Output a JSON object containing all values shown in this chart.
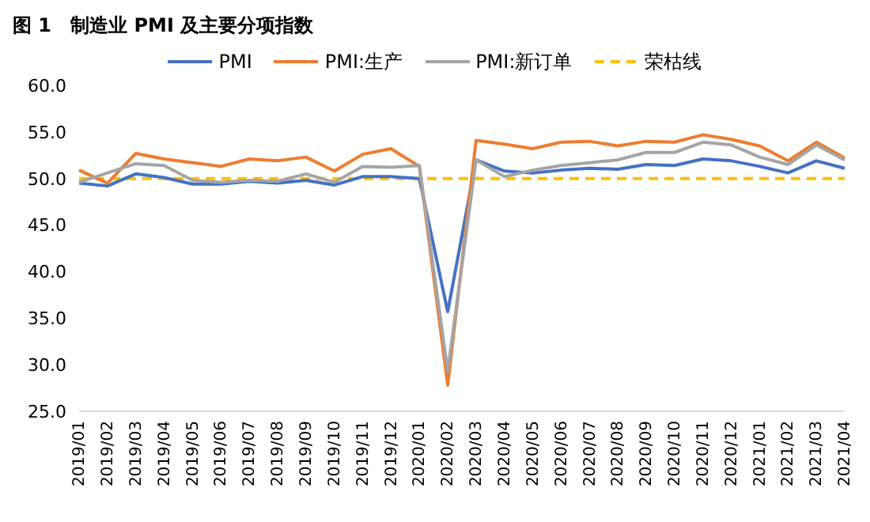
{
  "chart_data": {
    "type": "line",
    "title": "图 1　制造业 PMI 及主要分项指数",
    "categories": [
      "2019/01",
      "2019/02",
      "2019/03",
      "2019/04",
      "2019/05",
      "2019/06",
      "2019/07",
      "2019/08",
      "2019/09",
      "2019/10",
      "2019/11",
      "2019/12",
      "2020/01",
      "2020/02",
      "2020/03",
      "2020/04",
      "2020/05",
      "2020/06",
      "2020/07",
      "2020/08",
      "2020/09",
      "2020/10",
      "2020/11",
      "2020/12",
      "2021/01",
      "2021/02",
      "2021/03",
      "2021/04"
    ],
    "series": [
      {
        "name": "PMI",
        "color": "#4472c4",
        "values": [
          49.5,
          49.2,
          50.5,
          50.1,
          49.4,
          49.4,
          49.7,
          49.5,
          49.8,
          49.3,
          50.2,
          50.2,
          50.0,
          35.7,
          52.0,
          50.8,
          50.6,
          50.9,
          51.1,
          51.0,
          51.5,
          51.4,
          52.1,
          51.9,
          51.3,
          50.6,
          51.9,
          51.1
        ]
      },
      {
        "name": "PMI:生产",
        "color": "#ed7d31",
        "values": [
          50.9,
          49.5,
          52.7,
          52.1,
          51.7,
          51.3,
          52.1,
          51.9,
          52.3,
          50.8,
          52.6,
          53.2,
          51.3,
          27.8,
          54.1,
          53.7,
          53.2,
          53.9,
          54.0,
          53.5,
          54.0,
          53.9,
          54.7,
          54.2,
          53.5,
          51.9,
          53.9,
          52.2
        ]
      },
      {
        "name": "PMI:新订单",
        "color": "#a5a5a5",
        "values": [
          49.6,
          50.6,
          51.6,
          51.4,
          49.8,
          49.6,
          49.8,
          49.7,
          50.5,
          49.6,
          51.3,
          51.2,
          51.4,
          29.3,
          52.0,
          50.2,
          50.9,
          51.4,
          51.7,
          52.0,
          52.8,
          52.8,
          53.9,
          53.6,
          52.3,
          51.5,
          53.6,
          52.0
        ]
      }
    ],
    "ref_lines": [
      {
        "axis": "y",
        "value": 50,
        "label": "荣枯线",
        "color": "#ffc000",
        "line_style": "dashed"
      }
    ],
    "ylim": [
      25,
      60
    ],
    "yticks": [
      {
        "value": 25,
        "label": "25.0"
      },
      {
        "value": 30,
        "label": "30.0"
      },
      {
        "value": 35,
        "label": "35.0"
      },
      {
        "value": 40,
        "label": "40.0"
      },
      {
        "value": 45,
        "label": "45.0"
      },
      {
        "value": 50,
        "label": "50.0"
      },
      {
        "value": 55,
        "label": "55.0"
      },
      {
        "value": 60,
        "label": "60.0"
      }
    ],
    "grid": false,
    "legend": "top",
    "marker": "none",
    "line_style": "solid"
  }
}
